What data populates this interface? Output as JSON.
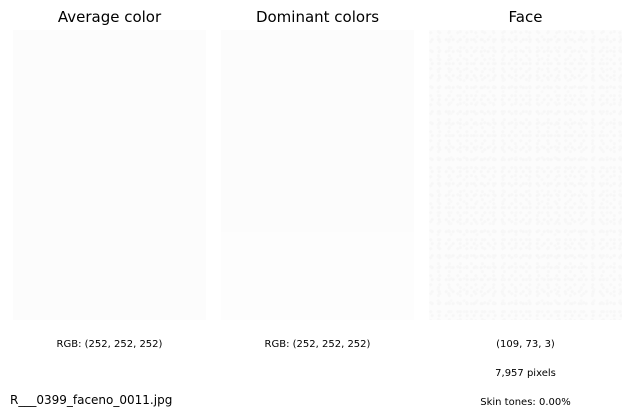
{
  "panels": {
    "average": {
      "title": "Average color",
      "rgb_text": "RGB: (252, 252, 252)",
      "color": "#fcfcfc"
    },
    "dominant": {
      "title": "Dominant colors",
      "rgb_text": "RGB: (252, 252, 252)",
      "colors": [
        "#fcfcfc",
        "#fdfdfd"
      ]
    },
    "face": {
      "title": "Face",
      "rgb_text": "(109, 73, 3)",
      "pixels_text": "7,957 pixels",
      "skin_text": "Skin tones: 0.00%"
    }
  },
  "filename": "R___0399_faceno_0011.jpg"
}
